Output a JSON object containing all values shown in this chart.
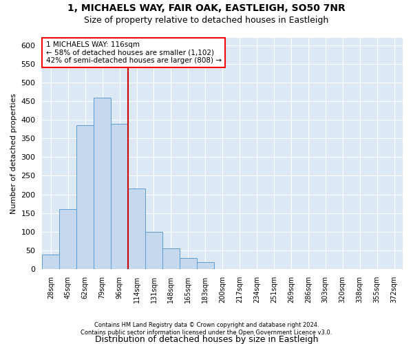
{
  "title1": "1, MICHAELS WAY, FAIR OAK, EASTLEIGH, SO50 7NR",
  "title2": "Size of property relative to detached houses in Eastleigh",
  "xlabel": "Distribution of detached houses by size in Eastleigh",
  "ylabel": "Number of detached properties",
  "footnote": "Contains HM Land Registry data © Crown copyright and database right 2024.\nContains public sector information licensed under the Open Government Licence v3.0.",
  "bin_labels": [
    "28sqm",
    "45sqm",
    "62sqm",
    "79sqm",
    "96sqm",
    "114sqm",
    "131sqm",
    "148sqm",
    "165sqm",
    "183sqm",
    "200sqm",
    "217sqm",
    "234sqm",
    "251sqm",
    "269sqm",
    "286sqm",
    "303sqm",
    "320sqm",
    "338sqm",
    "355sqm",
    "372sqm"
  ],
  "bar_heights": [
    38,
    160,
    385,
    460,
    390,
    215,
    100,
    55,
    30,
    18,
    0,
    0,
    0,
    0,
    0,
    0,
    0,
    0,
    0,
    0,
    0
  ],
  "bar_color": "#c5d8ee",
  "bar_edge_color": "#5b9bd5",
  "vline_color": "#cc0000",
  "vline_bin_index": 5,
  "annotation_title": "1 MICHAELS WAY: 116sqm",
  "annotation_line1": "← 58% of detached houses are smaller (1,102)",
  "annotation_line2": "42% of semi-detached houses are larger (808) →",
  "ylim": [
    0,
    620
  ],
  "yticks": [
    0,
    50,
    100,
    150,
    200,
    250,
    300,
    350,
    400,
    450,
    500,
    550,
    600
  ],
  "fig_bg": "#ffffff",
  "plot_bg": "#dce9f5"
}
